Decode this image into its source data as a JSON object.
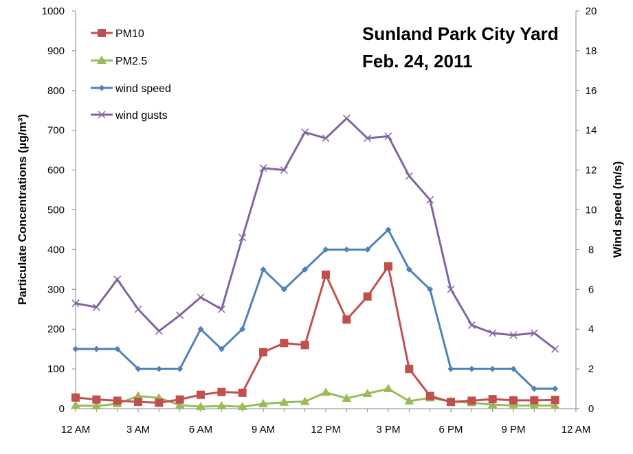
{
  "chart_data": {
    "type": "line",
    "title_lines": [
      "Sunland Park City Yard",
      "Feb. 24, 2011"
    ],
    "xlabel": "",
    "ylabel": "Particulate Concentrations (µg/m³)",
    "y2label": "Wind speed (m/s)",
    "x": [
      0,
      1,
      2,
      3,
      4,
      5,
      6,
      7,
      8,
      9,
      10,
      11,
      12,
      13,
      14,
      15,
      16,
      17,
      18,
      19,
      20,
      21,
      22,
      23
    ],
    "xlim": [
      0,
      24
    ],
    "x_ticks": [
      0,
      3,
      6,
      9,
      12,
      15,
      18,
      21,
      24
    ],
    "x_tick_labels": [
      "12 AM",
      "3 AM",
      "6 AM",
      "9 AM",
      "12 PM",
      "3 PM",
      "6 PM",
      "9 PM",
      "12 AM"
    ],
    "ylim": [
      0,
      1000
    ],
    "y_ticks": [
      0,
      100,
      200,
      300,
      400,
      500,
      600,
      700,
      800,
      900,
      1000
    ],
    "y2lim": [
      0,
      20
    ],
    "y2_ticks": [
      0,
      2,
      4,
      6,
      8,
      10,
      12,
      14,
      16,
      18,
      20
    ],
    "legend_position": "top-left",
    "grid": false,
    "series": [
      {
        "name": "PM10",
        "axis": "left",
        "color": "#c0504d",
        "marker": "square",
        "values": [
          28,
          23,
          20,
          17,
          15,
          23,
          35,
          42,
          40,
          142,
          165,
          160,
          337,
          224,
          282,
          358,
          100,
          32,
          17,
          20,
          24,
          21,
          21,
          22
        ]
      },
      {
        "name": "PM2.5",
        "axis": "left",
        "color": "#9bbb59",
        "marker": "triangle",
        "values": [
          8,
          7,
          12,
          32,
          27,
          9,
          5,
          7,
          5,
          12,
          16,
          18,
          41,
          26,
          38,
          50,
          19,
          27,
          18,
          15,
          10,
          8,
          8,
          8
        ]
      },
      {
        "name": "wind speed",
        "axis": "right",
        "color": "#4f81bd",
        "marker": "diamond",
        "values": [
          3,
          3,
          3,
          2,
          2,
          2,
          4,
          3,
          4,
          7,
          6,
          7,
          8,
          8,
          8,
          9,
          7,
          6,
          2,
          2,
          2,
          2,
          1,
          1
        ]
      },
      {
        "name": "wind gusts",
        "axis": "right",
        "color": "#8064a2",
        "marker": "x",
        "values": [
          5.3,
          5.1,
          6.5,
          5.0,
          3.9,
          4.7,
          5.6,
          5.0,
          8.6,
          12.1,
          12.0,
          13.9,
          13.6,
          14.6,
          13.6,
          13.7,
          11.7,
          10.5,
          6.0,
          4.2,
          3.8,
          3.7,
          3.8,
          3.0
        ]
      }
    ]
  }
}
